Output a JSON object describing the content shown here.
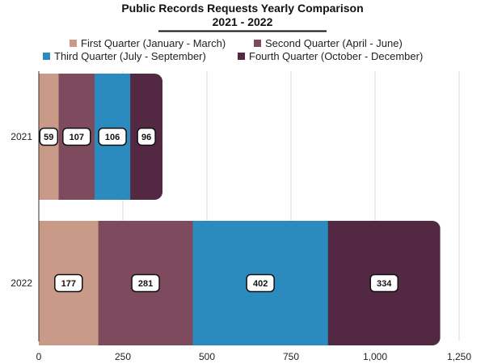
{
  "chart_data": {
    "type": "bar",
    "orientation": "horizontal",
    "stacked": true,
    "title": "Public Records Requests Yearly Comparison",
    "subtitle": "2021 - 2022",
    "categories": [
      "2021",
      "2022"
    ],
    "series": [
      {
        "name": "First Quarter (January - March)",
        "color": "#c99a88",
        "values": [
          59,
          177
        ]
      },
      {
        "name": "Second Quarter (April - June)",
        "color": "#7e4a5d",
        "values": [
          107,
          281
        ]
      },
      {
        "name": "Third Quarter (July - September)",
        "color": "#2b8bbf",
        "values": [
          106,
          402
        ]
      },
      {
        "name": "Fourth Quarter (October - December)",
        "color": "#522842",
        "values": [
          96,
          334
        ]
      }
    ],
    "xlim": [
      0,
      1250
    ],
    "xticks": [
      0,
      250,
      500,
      750,
      1000,
      1250
    ],
    "xtick_labels": [
      "0",
      "250",
      "500",
      "750",
      "1,000",
      "1,250"
    ],
    "data_labels": [
      [
        "59",
        "107",
        "106",
        "96"
      ],
      [
        "177",
        "281",
        "402",
        "334"
      ]
    ],
    "grid": "vertical",
    "legend_position": "top"
  }
}
